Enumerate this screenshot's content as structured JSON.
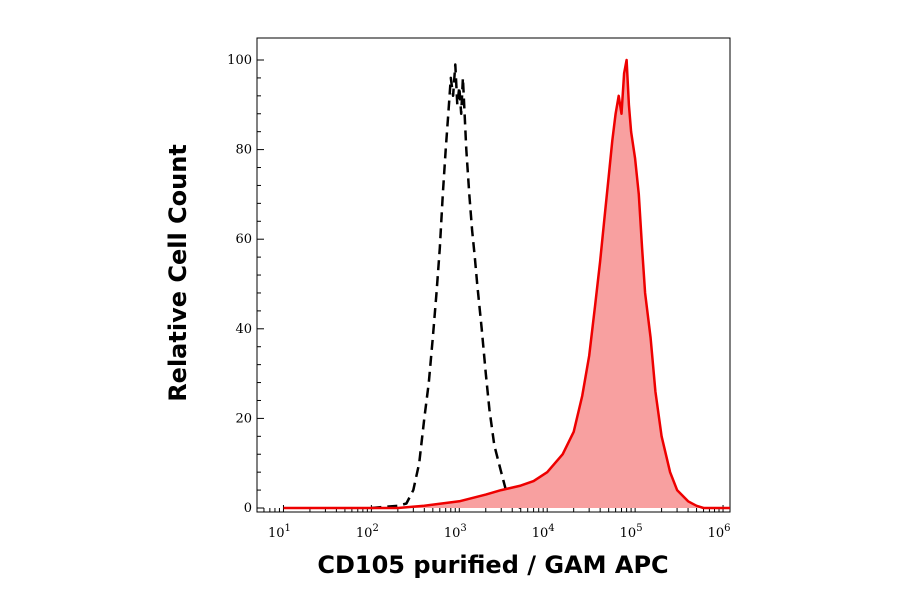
{
  "chart_data": {
    "type": "area",
    "title": "",
    "xlabel": "CD105 purified / GAM APC",
    "ylabel": "Relative Cell Count",
    "x_scale": "log",
    "xlim": [
      5,
      1200000
    ],
    "ylim": [
      0,
      100
    ],
    "x_ticks": [
      {
        "base": "10",
        "exp": "1"
      },
      {
        "base": "10",
        "exp": "2"
      },
      {
        "base": "10",
        "exp": "3"
      },
      {
        "base": "10",
        "exp": "4"
      },
      {
        "base": "10",
        "exp": "5"
      },
      {
        "base": "10",
        "exp": "6"
      }
    ],
    "y_ticks": [
      "0",
      "20",
      "40",
      "60",
      "80",
      "100"
    ],
    "grid": false,
    "legend": false,
    "series": [
      {
        "style": "dashed-outline",
        "color": "#000000",
        "points": [
          [
            100,
            0
          ],
          [
            200,
            0.5
          ],
          [
            250,
            1
          ],
          [
            300,
            4
          ],
          [
            350,
            10
          ],
          [
            400,
            20
          ],
          [
            450,
            28
          ],
          [
            500,
            38
          ],
          [
            550,
            48
          ],
          [
            600,
            58
          ],
          [
            650,
            70
          ],
          [
            700,
            80
          ],
          [
            750,
            88
          ],
          [
            800,
            96
          ],
          [
            850,
            92
          ],
          [
            900,
            99
          ],
          [
            950,
            90
          ],
          [
            1000,
            94
          ],
          [
            1050,
            88
          ],
          [
            1100,
            96
          ],
          [
            1200,
            80
          ],
          [
            1300,
            70
          ],
          [
            1400,
            62
          ],
          [
            1500,
            56
          ],
          [
            1600,
            50
          ],
          [
            1800,
            40
          ],
          [
            2000,
            30
          ],
          [
            2200,
            22
          ],
          [
            2500,
            14
          ],
          [
            3000,
            8
          ],
          [
            3500,
            3
          ],
          [
            4000,
            1
          ],
          [
            5000,
            0
          ]
        ]
      },
      {
        "style": "filled",
        "color": "#ee0000",
        "fill": "#f8a0a0",
        "points": [
          [
            10,
            0
          ],
          [
            200,
            0
          ],
          [
            400,
            0.5
          ],
          [
            1000,
            1.5
          ],
          [
            2000,
            3
          ],
          [
            3000,
            4
          ],
          [
            5000,
            5
          ],
          [
            7000,
            6
          ],
          [
            10000,
            8
          ],
          [
            15000,
            12
          ],
          [
            20000,
            17
          ],
          [
            25000,
            25
          ],
          [
            30000,
            34
          ],
          [
            35000,
            45
          ],
          [
            40000,
            55
          ],
          [
            45000,
            65
          ],
          [
            50000,
            74
          ],
          [
            55000,
            82
          ],
          [
            60000,
            88
          ],
          [
            65000,
            92
          ],
          [
            70000,
            88
          ],
          [
            75000,
            97
          ],
          [
            80000,
            100
          ],
          [
            85000,
            90
          ],
          [
            90000,
            84
          ],
          [
            100000,
            78
          ],
          [
            110000,
            70
          ],
          [
            120000,
            58
          ],
          [
            130000,
            48
          ],
          [
            150000,
            38
          ],
          [
            170000,
            26
          ],
          [
            200000,
            16
          ],
          [
            250000,
            8
          ],
          [
            300000,
            4
          ],
          [
            400000,
            1.5
          ],
          [
            500000,
            0.5
          ],
          [
            600000,
            0
          ],
          [
            1000000,
            0
          ],
          [
            1200000,
            0
          ]
        ]
      }
    ]
  }
}
